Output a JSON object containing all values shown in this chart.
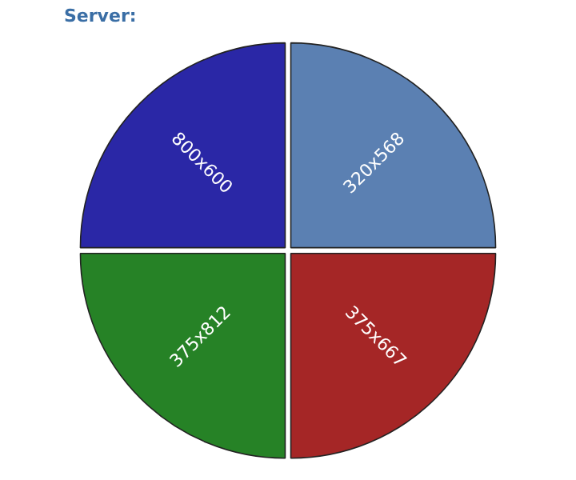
{
  "chart_data": {
    "type": "pie",
    "title": "Server:",
    "categories": [
      "320x568",
      "375x667",
      "375x812",
      "800x600"
    ],
    "values": [
      25,
      25,
      25,
      25
    ],
    "colors": [
      "#5b80b2",
      "#a52626",
      "#268226",
      "#2a27a6"
    ],
    "legend": false
  }
}
